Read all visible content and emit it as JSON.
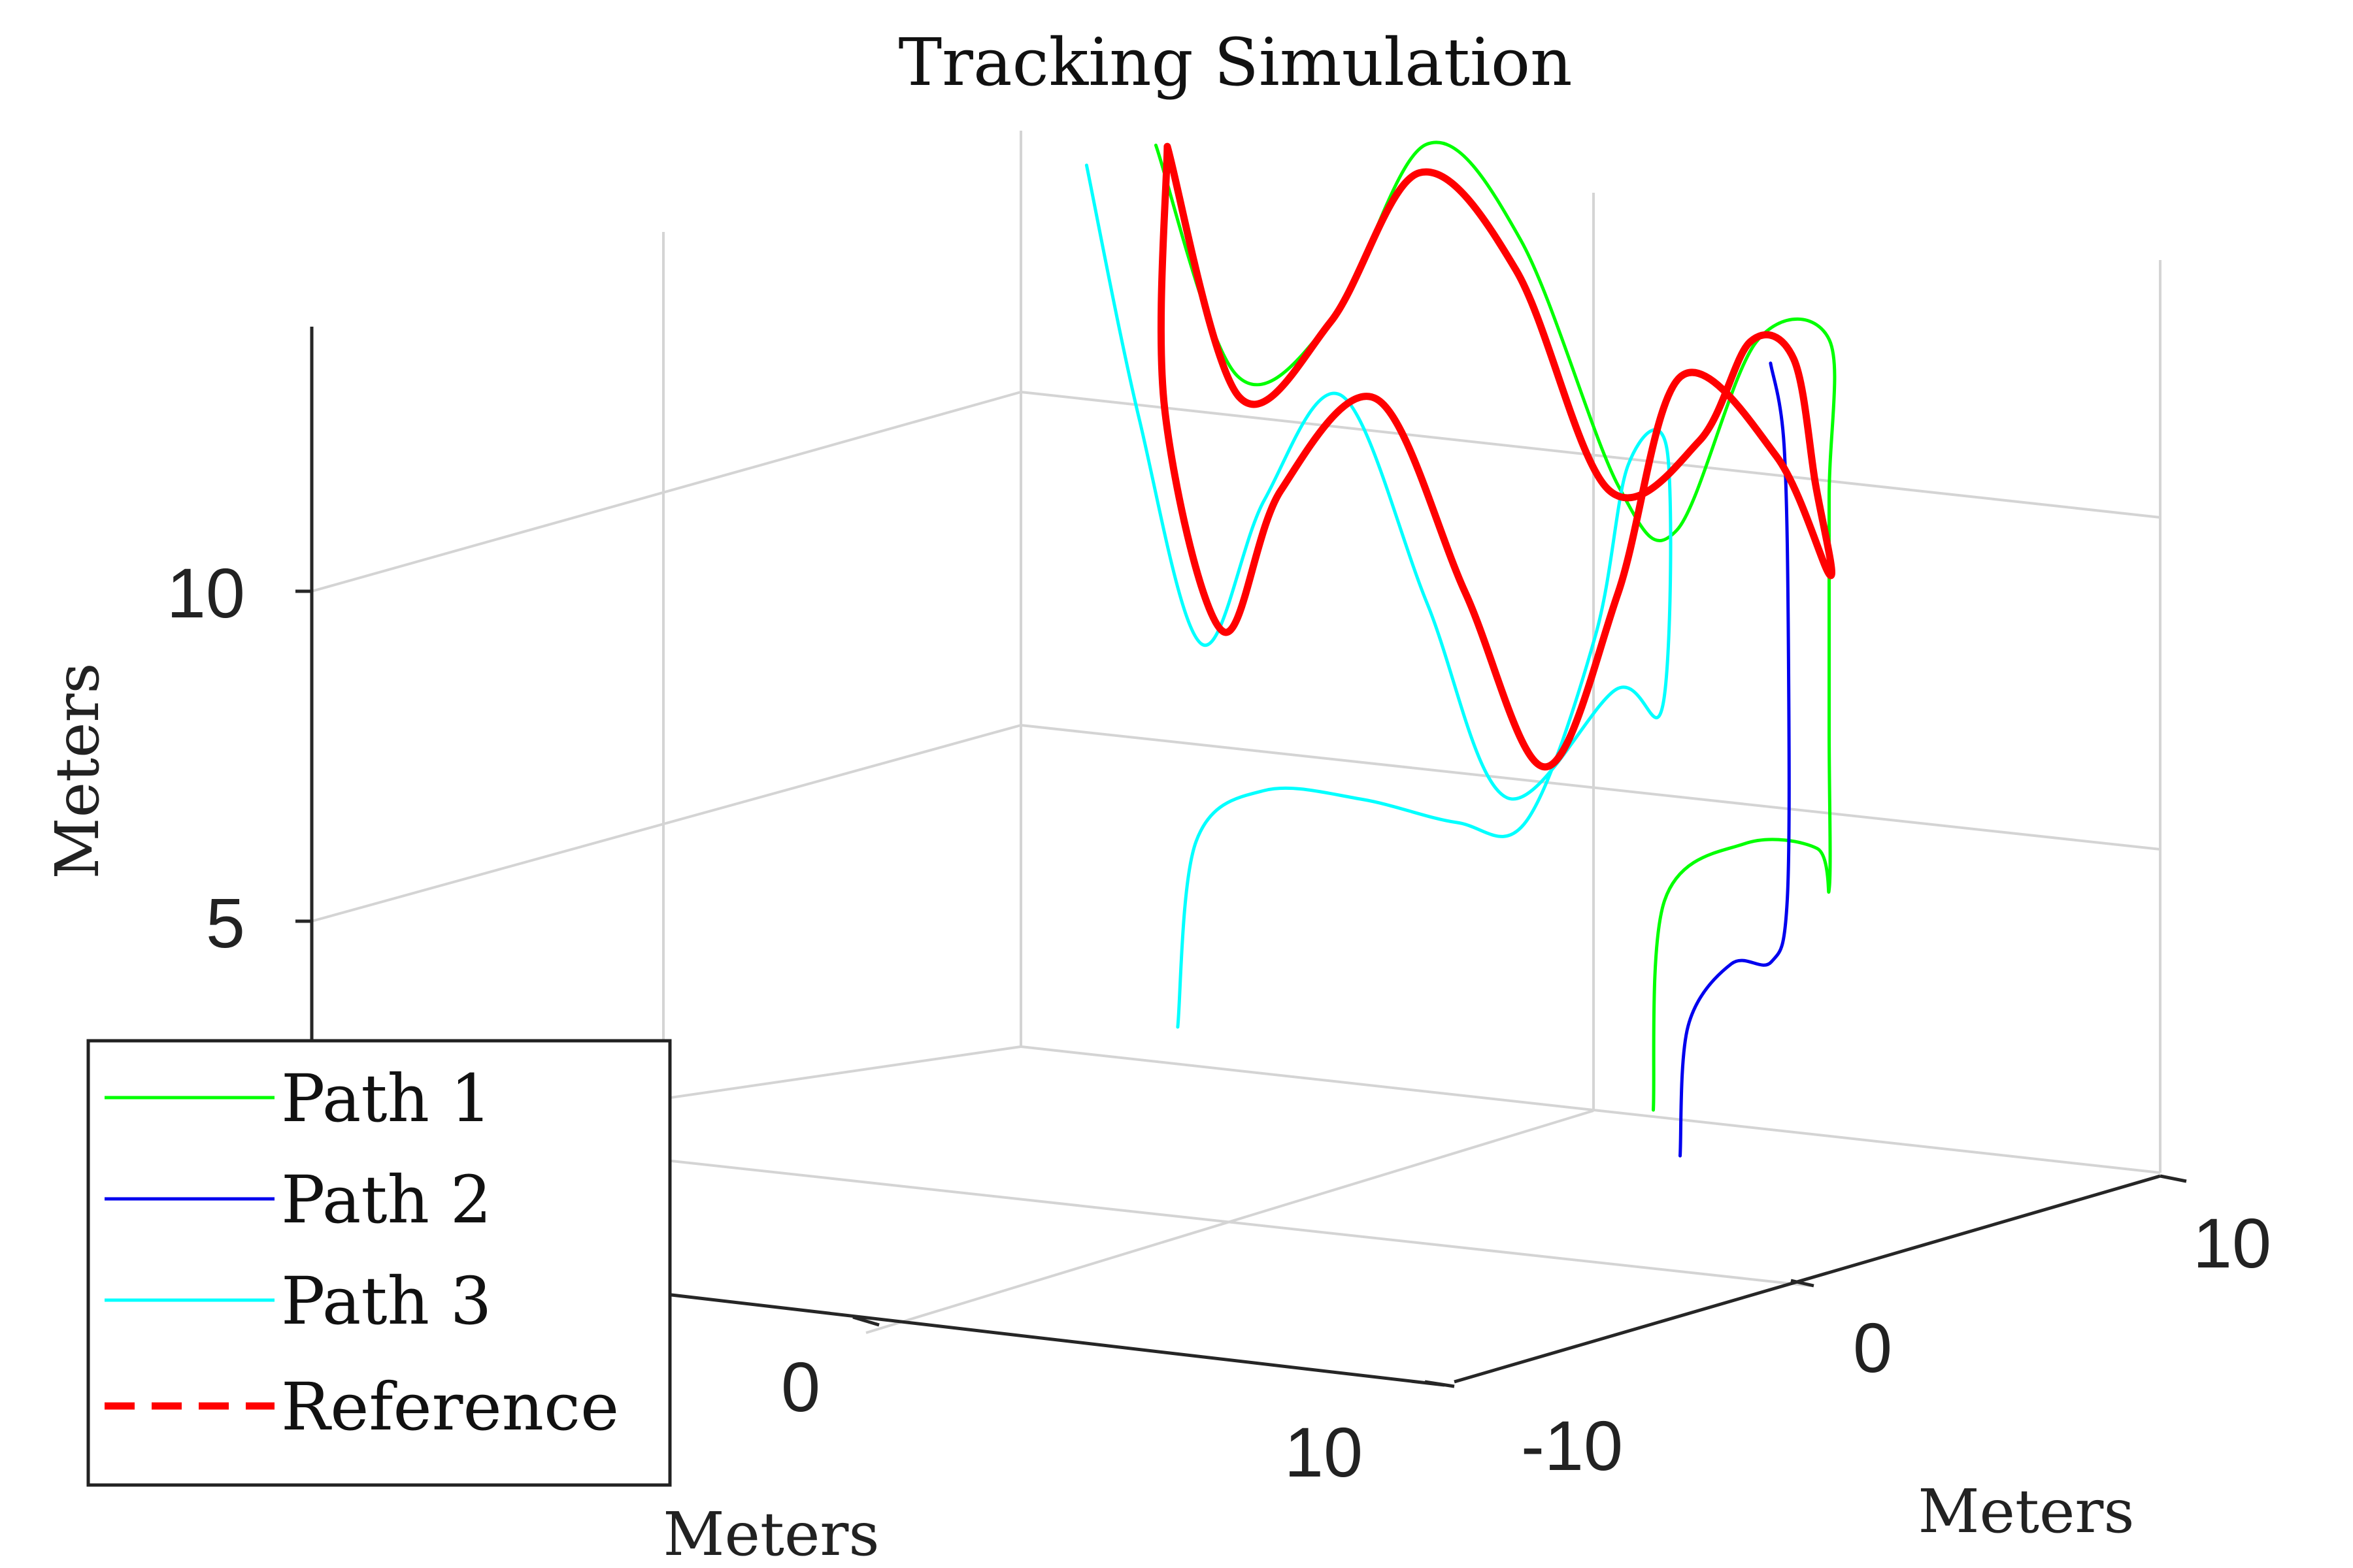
{
  "chart_data": {
    "type": "line",
    "title": "Tracking Simulation",
    "xlabel": "Meters",
    "ylabel": "Meters",
    "zlabel": "Meters",
    "x_ticks": [
      "0",
      "10"
    ],
    "y_ticks": [
      "-10",
      "0",
      "10"
    ],
    "z_ticks": [
      "5",
      "10"
    ],
    "xlim": [
      -10,
      12
    ],
    "ylim": [
      -14,
      12
    ],
    "zlim": [
      1,
      14
    ],
    "grid": true,
    "legend_position": "bottom-left",
    "series": [
      {
        "name": "Path 1",
        "color": "#00ff00",
        "style": "solid",
        "points": [
          [
            5,
            -10,
            0
          ],
          [
            5.5,
            -9.5,
            3.3
          ],
          [
            7.5,
            -8.5,
            4.5
          ],
          [
            9.5,
            -7.3,
            4.8
          ],
          [
            10.5,
            -6,
            4.5
          ],
          [
            10.8,
            -5.5,
            7
          ],
          [
            10.8,
            -5.5,
            10.5
          ],
          [
            10.5,
            -6,
            12.8
          ],
          [
            8.5,
            -7.2,
            12.4
          ],
          [
            6.5,
            -8.2,
            9.2
          ],
          [
            5,
            -9,
            9.6
          ],
          [
            2.5,
            -10.3,
            12.9
          ],
          [
            0,
            -11.7,
            13.9
          ],
          [
            -2.5,
            -13.1,
            10.8
          ],
          [
            -4.7,
            -14,
            9.6
          ],
          [
            -6,
            -13.8,
            13
          ]
        ]
      },
      {
        "name": "Path 2",
        "color": "#0000ee",
        "style": "solid",
        "points": [
          [
            8.8,
            -4.5,
            0.5
          ],
          [
            9,
            -4.4,
            2.5
          ],
          [
            10,
            -4,
            3.6
          ],
          [
            11,
            -3.5,
            3.8
          ],
          [
            11.4,
            -3.3,
            4.8
          ],
          [
            11.3,
            -3.5,
            8.5
          ],
          [
            10.8,
            -4.2,
            11.5
          ],
          [
            10.2,
            -4.8,
            12.6
          ]
        ]
      },
      {
        "name": "Path 3",
        "color": "#00ffff",
        "style": "solid",
        "points": [
          [
            -3.8,
            -10.8,
            0.3
          ],
          [
            -3.3,
            -10.5,
            3.2
          ],
          [
            -1.5,
            -9.5,
            4.3
          ],
          [
            1,
            -8.2,
            4.6
          ],
          [
            3.5,
            -6.8,
            4.7
          ],
          [
            5.5,
            -5.5,
            5.1
          ],
          [
            7.5,
            -4.2,
            8.3
          ],
          [
            8.5,
            -3.5,
            11.1
          ],
          [
            9,
            -3.8,
            11.3
          ],
          [
            8.8,
            -4,
            7.4
          ],
          [
            7.5,
            -4.8,
            7.4
          ],
          [
            4.5,
            -6.6,
            5.2
          ],
          [
            2.5,
            -7.6,
            7.8
          ],
          [
            0.4,
            -8.6,
            10.6
          ],
          [
            -1.8,
            -10,
            8.6
          ],
          [
            -3.5,
            -11,
            6.1
          ],
          [
            -5.2,
            -12,
            9.2
          ],
          [
            -6,
            -11.8,
            13
          ]
        ]
      },
      {
        "name": "Reference",
        "color": "#ff0000",
        "style": "dashed",
        "loops": [
          [
            [
              -5.8,
              -13.8,
              13
            ],
            [
              -4.6,
              -13.9,
              9.3
            ],
            [
              -2.4,
              -12.9,
              10.8
            ],
            [
              0,
              -11.5,
              13.5
            ],
            [
              2.6,
              -10,
              12.5
            ],
            [
              5,
              -8.7,
              9.6
            ],
            [
              7.5,
              -7.2,
              10.8
            ],
            [
              9,
              -6.2,
              12.6
            ],
            [
              10.3,
              -5.3,
              12.6
            ],
            [
              10.8,
              -5.1,
              10.8
            ],
            [
              11,
              -5.2,
              9.4
            ],
            [
              10.3,
              -4.8,
              11.2
            ],
            [
              8.5,
              -5,
              12.2
            ],
            [
              6.5,
              -6.5,
              8.5
            ],
            [
              4.5,
              -7.7,
              5.5
            ],
            [
              2.5,
              -8.7,
              7.8
            ],
            [
              0.4,
              -9.6,
              10.4
            ],
            [
              -2,
              -10.8,
              8.6
            ],
            [
              -3.8,
              -12.1,
              6.1
            ],
            [
              -5.3,
              -12.9,
              9.2
            ],
            [
              -5.8,
              -13.8,
              13
            ]
          ]
        ]
      }
    ]
  }
}
